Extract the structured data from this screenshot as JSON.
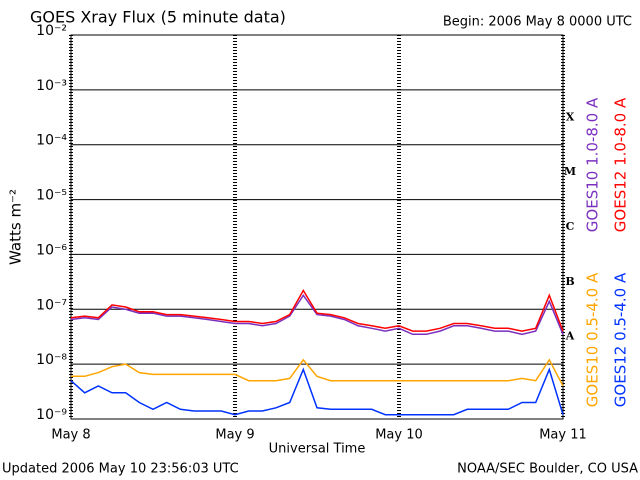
{
  "chart_data": {
    "type": "line",
    "title": "GOES Xray Flux (5 minute data)",
    "subtitle": "Begin:  2006 May 8 0000 UTC",
    "y_label": "Watts m⁻²",
    "x_label": "Universal Time",
    "footer_left": "Updated 2006 May 10 23:56:03 UTC",
    "footer_right": "NOAA/SEC Boulder, CO USA",
    "log_y": true,
    "grid": true,
    "x": [
      0,
      2,
      4,
      6,
      8,
      10,
      12,
      14,
      16,
      18,
      20,
      22,
      24,
      26,
      28,
      30,
      32,
      34,
      36,
      38,
      40,
      42,
      44,
      46,
      48,
      50,
      52,
      54,
      56,
      58,
      60,
      62,
      64,
      66,
      68,
      70,
      72
    ],
    "xlim": [
      0,
      72
    ],
    "xticks": [
      {
        "value": 0,
        "label": "May 8"
      },
      {
        "value": 24,
        "label": "May 9"
      },
      {
        "value": 48,
        "label": "May 10"
      },
      {
        "value": 72,
        "label": "May 11"
      }
    ],
    "ylim": [
      1e-09,
      0.01
    ],
    "yticks": [
      {
        "value": 1e-09,
        "label": "10⁻⁹"
      },
      {
        "value": 1e-08,
        "label": "10⁻⁸"
      },
      {
        "value": 1e-07,
        "label": "10⁻⁷"
      },
      {
        "value": 1e-06,
        "label": "10⁻⁶"
      },
      {
        "value": 1e-05,
        "label": "10⁻⁵"
      },
      {
        "value": 0.0001,
        "label": "10⁻⁴"
      },
      {
        "value": 0.001,
        "label": "10⁻³"
      },
      {
        "value": 0.01,
        "label": "10⁻²"
      }
    ],
    "flare_classes": [
      {
        "value": 1e-08,
        "label": "A"
      },
      {
        "value": 1e-07,
        "label": "B"
      },
      {
        "value": 1e-06,
        "label": "C"
      },
      {
        "value": 1e-05,
        "label": "M"
      },
      {
        "value": 0.0001,
        "label": "X"
      }
    ],
    "series": [
      {
        "name": "GOES10 1.0-8.0 A",
        "color": "#7b2fbe",
        "values": [
          6.5e-08,
          7e-08,
          6.5e-08,
          1.1e-07,
          1e-07,
          8.5e-08,
          8.5e-08,
          7.5e-08,
          7.5e-08,
          7e-08,
          6.5e-08,
          6e-08,
          5.5e-08,
          5.5e-08,
          5e-08,
          5.5e-08,
          7.5e-08,
          1.8e-07,
          8e-08,
          7.5e-08,
          6.5e-08,
          5e-08,
          4.5e-08,
          4e-08,
          4.5e-08,
          3.5e-08,
          3.5e-08,
          4e-08,
          5e-08,
          5e-08,
          4.5e-08,
          4e-08,
          4e-08,
          3.5e-08,
          4e-08,
          1.4e-07,
          3.5e-08
        ]
      },
      {
        "name": "GOES12 1.0-8.0 A",
        "color": "#ff0000",
        "values": [
          7e-08,
          7.5e-08,
          7e-08,
          1.2e-07,
          1.1e-07,
          9e-08,
          9e-08,
          8e-08,
          8e-08,
          7.5e-08,
          7e-08,
          6.5e-08,
          6e-08,
          6e-08,
          5.5e-08,
          6e-08,
          8e-08,
          2.2e-07,
          8.5e-08,
          8e-08,
          7e-08,
          5.5e-08,
          5e-08,
          4.5e-08,
          5e-08,
          4e-08,
          4e-08,
          4.5e-08,
          5.5e-08,
          5.5e-08,
          5e-08,
          4.5e-08,
          4.5e-08,
          4e-08,
          4.5e-08,
          1.8e-07,
          4e-08
        ]
      },
      {
        "name": "GOES10 0.5-4.0 A",
        "color": "#ffa500",
        "values": [
          6e-09,
          6e-09,
          7e-09,
          9e-09,
          1e-08,
          7e-09,
          6.5e-09,
          6.5e-09,
          6.5e-09,
          6.5e-09,
          6.5e-09,
          6.5e-09,
          6.5e-09,
          5e-09,
          5e-09,
          5e-09,
          5.5e-09,
          1.2e-08,
          6e-09,
          5e-09,
          5e-09,
          5e-09,
          5e-09,
          5e-09,
          5e-09,
          5e-09,
          5e-09,
          5e-09,
          5e-09,
          5e-09,
          5e-09,
          5e-09,
          5e-09,
          5.5e-09,
          5e-09,
          1.2e-08,
          4e-09
        ]
      },
      {
        "name": "GOES12 0.5-4.0 A",
        "color": "#0033ff",
        "values": [
          5e-09,
          3e-09,
          4e-09,
          3e-09,
          3e-09,
          2e-09,
          1.5e-09,
          2e-09,
          1.5e-09,
          1.4e-09,
          1.4e-09,
          1.4e-09,
          1.2e-09,
          1.4e-09,
          1.4e-09,
          1.6e-09,
          2e-09,
          8e-09,
          1.6e-09,
          1.5e-09,
          1.5e-09,
          1.5e-09,
          1.5e-09,
          1.2e-09,
          1.2e-09,
          1.2e-09,
          1.2e-09,
          1.2e-09,
          1.2e-09,
          1.5e-09,
          1.5e-09,
          1.5e-09,
          1.5e-09,
          2e-09,
          2e-09,
          8e-09,
          1.2e-09
        ]
      }
    ]
  }
}
